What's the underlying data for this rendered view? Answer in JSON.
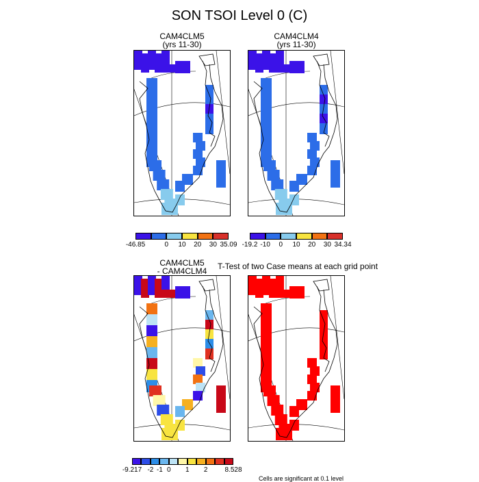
{
  "title": "SON TSOI Level 0 (C)",
  "panels": {
    "p1": {
      "line1": "CAM4CLM5",
      "line2": "(yrs 11-30)"
    },
    "p2": {
      "line1": "CAM4CLM4",
      "line2": "(yrs 11-30)"
    },
    "p3": {
      "line1": "CAM4CLM5",
      "line2": "- CAM4CLM4"
    },
    "p4": {
      "line1": "T-Test of two Case means at each grid point"
    }
  },
  "colorbars": {
    "cb1": {
      "colors": [
        "#3b12e8",
        "#2c6de8",
        "#87cbed",
        "#f8e440",
        "#f27212",
        "#d8302a"
      ],
      "labels": [
        "-46.85",
        "0",
        "10",
        "20",
        "30",
        "35.09"
      ]
    },
    "cb2": {
      "colors": [
        "#3b12e8",
        "#2c6de8",
        "#87cbed",
        "#f8e440",
        "#f27212",
        "#d8302a"
      ],
      "labels": [
        "-19.2",
        "-10",
        "0",
        "10",
        "20",
        "30",
        "34.34"
      ]
    },
    "cb3": {
      "colors": [
        "#3b12e8",
        "#2c4de8",
        "#2c8de8",
        "#6ab6ee",
        "#bde3f5",
        "#fff7a8",
        "#f8e440",
        "#f6b020",
        "#f27212",
        "#e03020",
        "#c80818"
      ],
      "labels": [
        "-9.217",
        "-2",
        "-1",
        "0",
        "1",
        "2",
        "8.528"
      ]
    }
  },
  "significance_note": "Cells are significant at 0.1 level",
  "chart_data": [
    {
      "type": "heatmap",
      "title": "CAM4CLM5 (yrs 11-30)",
      "colorbar_min": -46.85,
      "colorbar_max": 35.09,
      "colorbar_ticks": [
        0,
        10,
        20,
        30
      ]
    },
    {
      "type": "heatmap",
      "title": "CAM4CLM4 (yrs 11-30)",
      "colorbar_min": -19.2,
      "colorbar_max": 34.34,
      "colorbar_ticks": [
        -10,
        0,
        10,
        20,
        30
      ]
    },
    {
      "type": "heatmap",
      "title": "CAM4CLM5 - CAM4CLM4",
      "colorbar_min": -9.217,
      "colorbar_max": 8.528,
      "colorbar_ticks": [
        -2,
        -1,
        0,
        1,
        2
      ]
    },
    {
      "type": "heatmap",
      "title": "T-Test of two Case means at each grid point"
    }
  ]
}
